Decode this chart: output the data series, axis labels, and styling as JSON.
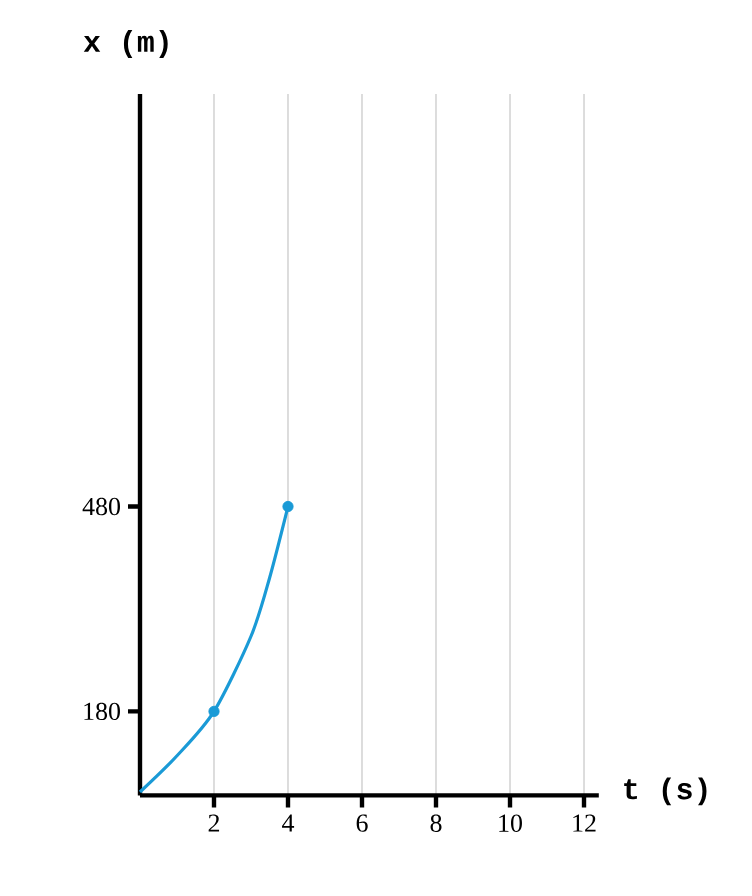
{
  "chart_data": {
    "type": "line",
    "xlabel": "t (s)",
    "ylabel": "x (m)",
    "xlim": [
      0,
      12.4
    ],
    "ylim": [
      57,
      1084
    ],
    "xticks": [
      2,
      4,
      6,
      8,
      10,
      12
    ],
    "yticks": [
      180,
      480
    ],
    "grid": "x",
    "series": [
      {
        "color": "#1a9ad6",
        "x": [
          0,
          1,
          2,
          3,
          3.5,
          4
        ],
        "values": [
          62,
          115,
          180,
          290,
          375,
          480
        ],
        "marker": "none"
      },
      {
        "type": "scatter",
        "color": "#1a9ad6",
        "x": [
          2,
          4
        ],
        "values": [
          180,
          480
        ],
        "marker": "circle"
      }
    ]
  }
}
